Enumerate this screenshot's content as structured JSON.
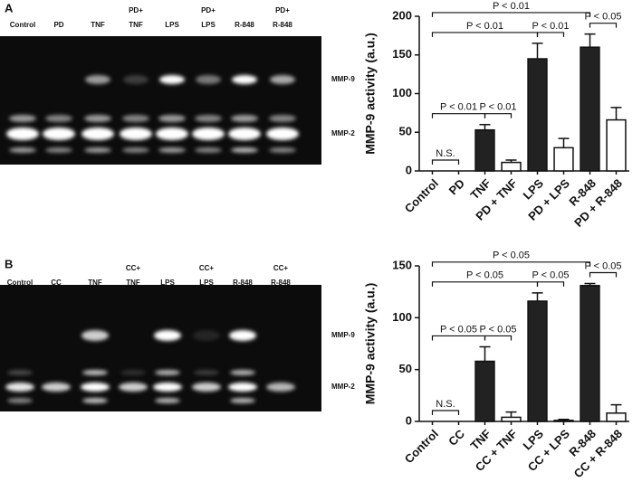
{
  "gels": [
    {
      "panel": "A",
      "lanes": [
        [
          "Control"
        ],
        [
          "PD"
        ],
        [
          "TNF"
        ],
        [
          "PD+",
          "TNF"
        ],
        [
          "LPS"
        ],
        [
          "PD+",
          "LPS"
        ],
        [
          "R-848"
        ],
        [
          "PD+",
          "R-848"
        ]
      ],
      "bands": [
        "MMP-9",
        "MMP-2"
      ]
    },
    {
      "panel": "B",
      "lanes": [
        [
          "Control"
        ],
        [
          "CC"
        ],
        [
          "TNF"
        ],
        [
          "CC+",
          "TNF"
        ],
        [
          "LPS"
        ],
        [
          "CC+",
          "LPS"
        ],
        [
          "R-848"
        ],
        [
          "CC+",
          "R-848"
        ]
      ],
      "bands": [
        "MMP-9",
        "MMP-2"
      ]
    }
  ],
  "chart_data": [
    {
      "type": "bar",
      "y_label": "MMP-9 activity (a.u.)",
      "categories": [
        "Control",
        "PD",
        "TNF",
        "PD + TNF",
        "LPS",
        "PD + LPS",
        "R-848",
        "PD + R-848"
      ],
      "values": [
        0,
        0,
        53,
        11,
        145,
        30,
        160,
        66
      ],
      "errors": [
        0,
        0,
        7,
        3,
        20,
        12,
        17,
        16
      ],
      "colors": [
        "#ffffff",
        "#ffffff",
        "#222222",
        "#ffffff",
        "#222222",
        "#ffffff",
        "#222222",
        "#ffffff"
      ],
      "ylim": [
        0,
        200
      ],
      "yticks": [
        0,
        50,
        100,
        150,
        200
      ],
      "brackets": [
        {
          "from": 0,
          "to": 1,
          "label": "N.S."
        },
        {
          "from": 0,
          "to": 2,
          "label": "P < 0.01"
        },
        {
          "from": 2,
          "to": 3,
          "label": "P < 0.01"
        },
        {
          "from": 0,
          "to": 4,
          "label": "P < 0.01"
        },
        {
          "from": 4,
          "to": 5,
          "label": "P < 0.01"
        },
        {
          "from": 6,
          "to": 7,
          "label": "P < 0.05"
        },
        {
          "from": 0,
          "to": 6,
          "label": "P < 0.01"
        }
      ]
    },
    {
      "type": "bar",
      "y_label": "MMP-9 activity (a.u.)",
      "categories": [
        "Control",
        "CC",
        "TNF",
        "CC + TNF",
        "LPS",
        "CC + LPS",
        "R-848",
        "CC + R-848"
      ],
      "values": [
        0,
        0,
        58,
        4,
        116,
        1,
        131,
        8
      ],
      "errors": [
        0,
        0,
        14,
        5,
        8,
        1,
        2,
        8
      ],
      "colors": [
        "#ffffff",
        "#ffffff",
        "#222222",
        "#ffffff",
        "#222222",
        "#ffffff",
        "#222222",
        "#ffffff"
      ],
      "ylim": [
        0,
        150
      ],
      "yticks": [
        0,
        50,
        100,
        150
      ],
      "brackets": [
        {
          "from": 0,
          "to": 1,
          "label": "N.S."
        },
        {
          "from": 0,
          "to": 2,
          "label": "P < 0.05"
        },
        {
          "from": 2,
          "to": 3,
          "label": "P < 0.05"
        },
        {
          "from": 0,
          "to": 4,
          "label": "P < 0.05"
        },
        {
          "from": 4,
          "to": 5,
          "label": "P < 0.05"
        },
        {
          "from": 6,
          "to": 7,
          "label": "P < 0.05"
        },
        {
          "from": 0,
          "to": 6,
          "label": "P < 0.05"
        }
      ]
    }
  ]
}
